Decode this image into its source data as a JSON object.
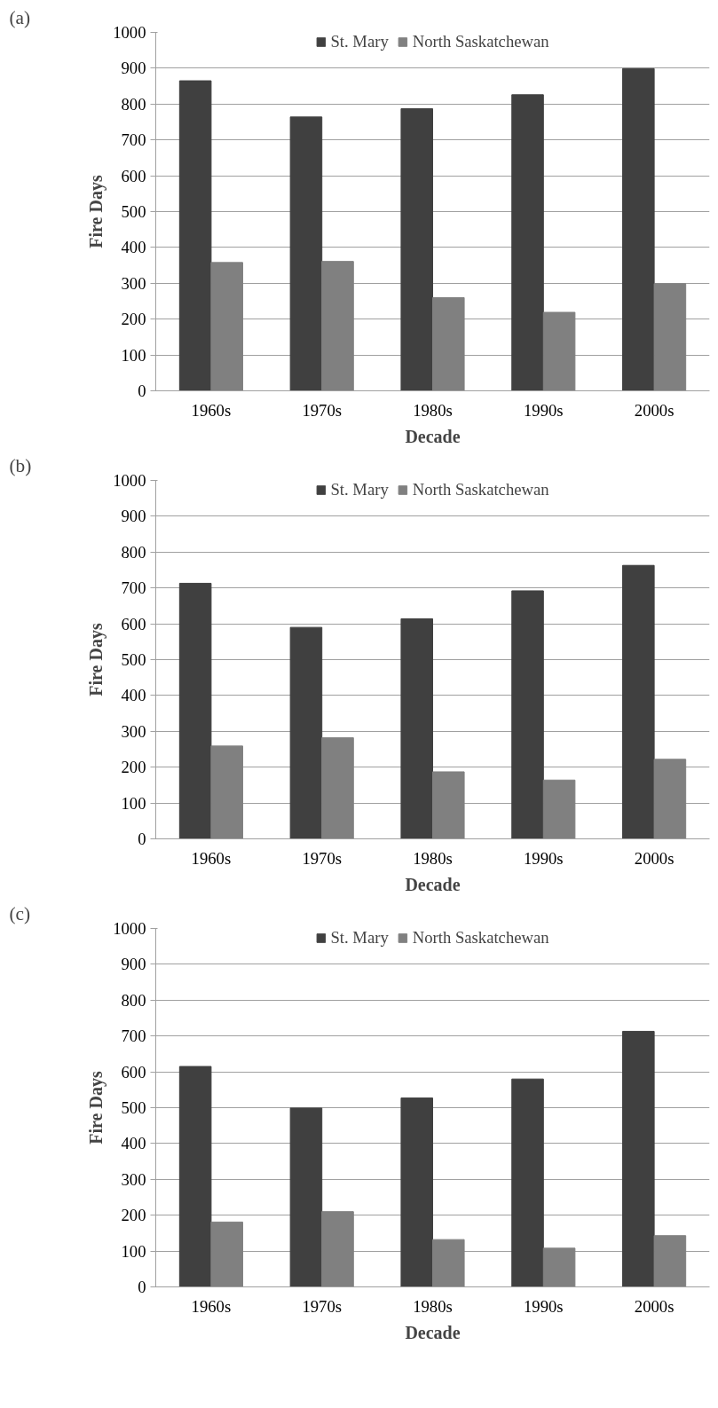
{
  "chart_data": [
    {
      "type": "bar",
      "xlabel": "Decade",
      "ylabel": "Fire Days",
      "annotations": [
        "(a)"
      ],
      "categories": [
        "1960s",
        "1970s",
        "1980s",
        "1990s",
        "2000s"
      ],
      "series": [
        {
          "name": "St. Mary",
          "color": "#404040",
          "values": [
            865,
            764,
            787,
            826,
            899
          ]
        },
        {
          "name": "North Saskatchewan",
          "color": "#808080",
          "values": [
            358,
            361,
            260,
            219,
            299
          ]
        }
      ],
      "ylim": [
        0,
        1000
      ],
      "yticks": [
        0,
        100,
        200,
        300,
        400,
        500,
        600,
        700,
        800,
        900,
        1000
      ],
      "grid": "y",
      "legend": "top"
    },
    {
      "type": "bar",
      "xlabel": "Decade",
      "ylabel": "Fire Days",
      "annotations": [
        "(b)"
      ],
      "categories": [
        "1960s",
        "1970s",
        "1980s",
        "1990s",
        "2000s"
      ],
      "series": [
        {
          "name": "St. Mary",
          "color": "#404040",
          "values": [
            713,
            590,
            614,
            692,
            763
          ]
        },
        {
          "name": "North Saskatchewan",
          "color": "#808080",
          "values": [
            259,
            282,
            187,
            164,
            222
          ]
        }
      ],
      "ylim": [
        0,
        1000
      ],
      "yticks": [
        0,
        100,
        200,
        300,
        400,
        500,
        600,
        700,
        800,
        900,
        1000
      ],
      "grid": "y",
      "legend": "top"
    },
    {
      "type": "bar",
      "xlabel": "Decade",
      "ylabel": "Fire Days",
      "annotations": [
        "(c)"
      ],
      "categories": [
        "1960s",
        "1970s",
        "1980s",
        "1990s",
        "2000s"
      ],
      "series": [
        {
          "name": "St. Mary",
          "color": "#404040",
          "values": [
            615,
            499,
            527,
            580,
            713
          ]
        },
        {
          "name": "North Saskatchewan",
          "color": "#808080",
          "values": [
            181,
            210,
            132,
            108,
            143
          ]
        }
      ],
      "ylim": [
        0,
        1000
      ],
      "yticks": [
        0,
        100,
        200,
        300,
        400,
        500,
        600,
        700,
        800,
        900,
        1000
      ],
      "grid": "y",
      "legend": "top"
    }
  ]
}
